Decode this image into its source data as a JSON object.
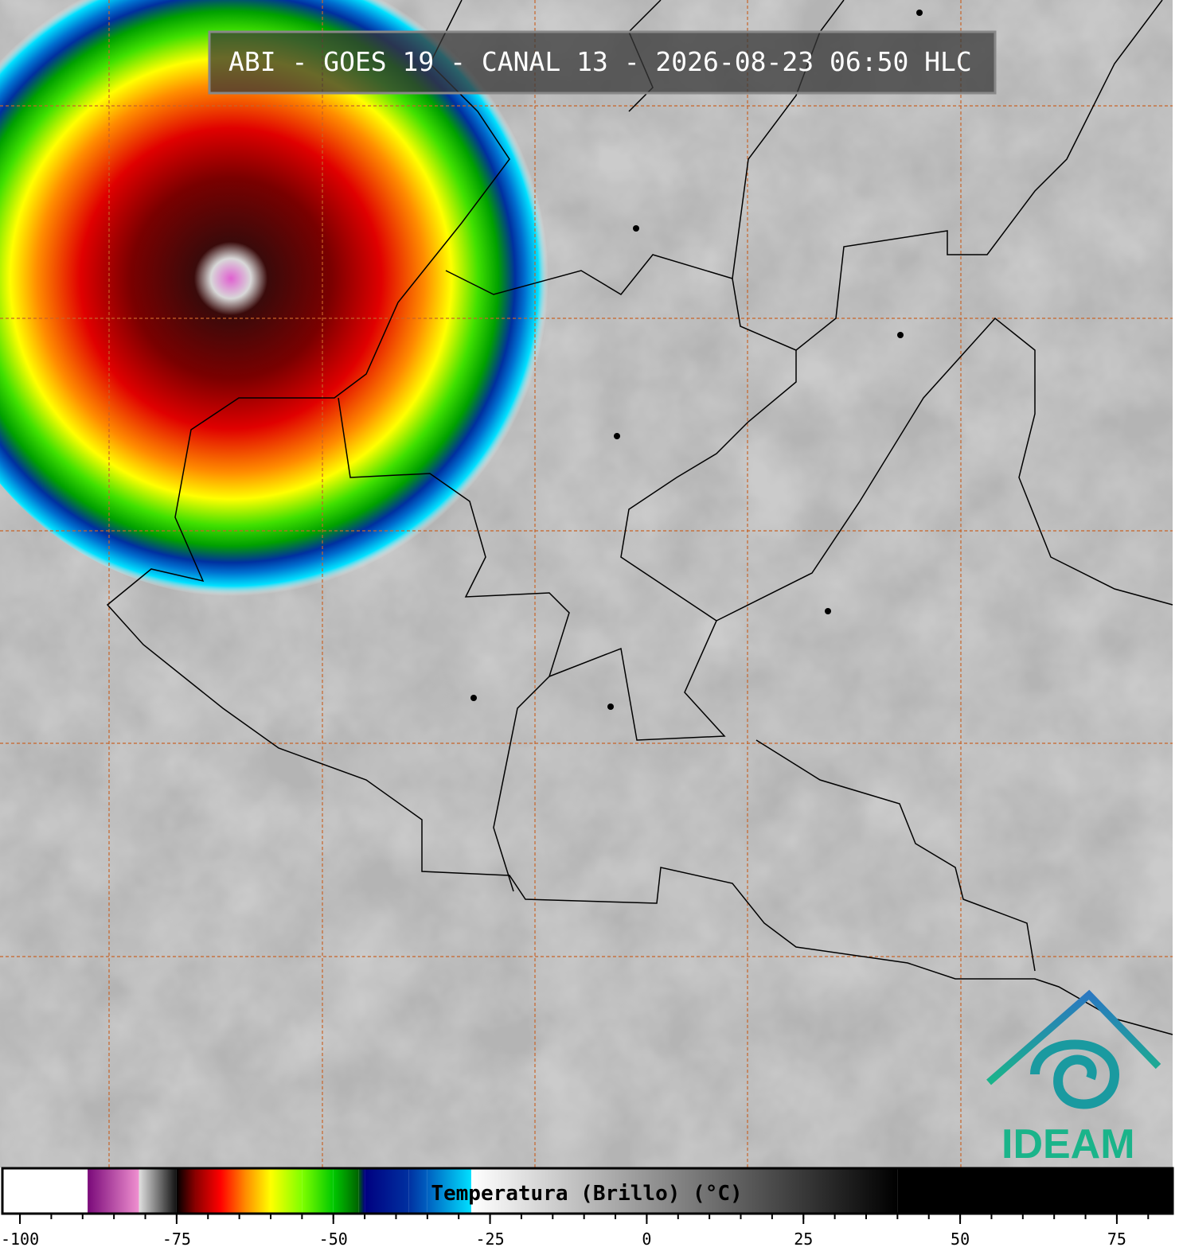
{
  "title": "ABI - GOES 19 - CANAL 13 - 2026-08-23 06:50 HLC",
  "logo_text": "IDEAM",
  "colorbar": {
    "label": "Temperatura (Brillo) (°C)",
    "xlim": [
      -102.8,
      83.9
    ],
    "xticks": [
      -100,
      -75,
      -50,
      -25,
      0,
      25,
      50,
      75
    ],
    "minor_ticks": [
      -100,
      -95,
      -90,
      -85,
      -80,
      -75,
      -70,
      -65,
      -60,
      -55,
      -50,
      -45,
      -40,
      -35,
      -30,
      -25,
      -20,
      -15,
      -10,
      -5,
      0,
      5,
      10,
      15,
      20,
      25,
      30,
      35,
      40,
      45,
      50,
      55,
      60,
      65,
      70,
      75,
      80
    ],
    "stops": [
      {
        "value": -102.8,
        "color": "#ffffff"
      },
      {
        "value": -89.2,
        "color": "#ffffff"
      },
      {
        "value": -89.2,
        "color": "#7a0a7a"
      },
      {
        "value": -81,
        "color": "#f090d0"
      },
      {
        "value": -81,
        "color": "#e0e0e0"
      },
      {
        "value": -75,
        "color": "#111111"
      },
      {
        "value": -75,
        "color": "#000000"
      },
      {
        "value": -72,
        "color": "#8b0000"
      },
      {
        "value": -68,
        "color": "#ff0000"
      },
      {
        "value": -64,
        "color": "#ff8c00"
      },
      {
        "value": -60,
        "color": "#ffff00"
      },
      {
        "value": -55,
        "color": "#7fff00"
      },
      {
        "value": -50,
        "color": "#00c800"
      },
      {
        "value": -46,
        "color": "#006400"
      },
      {
        "value": -45,
        "color": "#000080"
      },
      {
        "value": -38,
        "color": "#0030a0"
      },
      {
        "value": -35,
        "color": "#0060c0"
      },
      {
        "value": -28,
        "color": "#00e0ff"
      },
      {
        "value": -28,
        "color": "#ffffff"
      },
      {
        "value": 40,
        "color": "#000000"
      },
      {
        "value": 83.9,
        "color": "#000000"
      }
    ]
  }
}
